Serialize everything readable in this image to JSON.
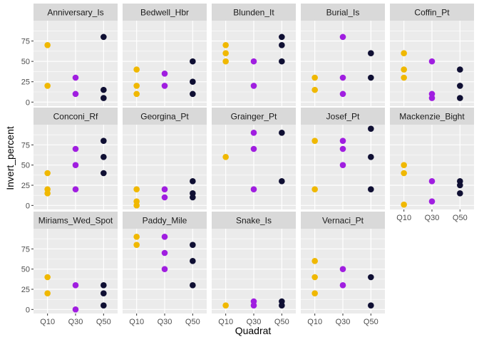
{
  "chart_data": {
    "type": "scatter",
    "xlabel": "Quadrat",
    "ylabel": "Invert_percent",
    "categories": [
      "Q10",
      "Q30",
      "Q50"
    ],
    "y_ticks": [
      0,
      25,
      50,
      75
    ],
    "ylim": [
      -5,
      100
    ],
    "grid": true,
    "legend": "none",
    "colors": {
      "Q10": "#f0b800",
      "Q30": "#a01ee0",
      "Q50": "#0f0f33"
    },
    "panel_bg": "#ebebeb",
    "strip_bg": "#d9d9d9",
    "panels": [
      {
        "name": "Anniversary_Is",
        "points": [
          [
            "Q10",
            70
          ],
          [
            "Q10",
            20
          ],
          [
            "Q30",
            30
          ],
          [
            "Q30",
            10
          ],
          [
            "Q50",
            80
          ],
          [
            "Q50",
            15
          ],
          [
            "Q50",
            5
          ]
        ]
      },
      {
        "name": "Bedwell_Hbr",
        "points": [
          [
            "Q10",
            40
          ],
          [
            "Q10",
            20
          ],
          [
            "Q10",
            10
          ],
          [
            "Q30",
            35
          ],
          [
            "Q30",
            20
          ],
          [
            "Q50",
            50
          ],
          [
            "Q50",
            25
          ],
          [
            "Q50",
            10
          ]
        ]
      },
      {
        "name": "Blunden_It",
        "points": [
          [
            "Q10",
            70
          ],
          [
            "Q10",
            60
          ],
          [
            "Q10",
            50
          ],
          [
            "Q30",
            50
          ],
          [
            "Q30",
            20
          ],
          [
            "Q50",
            80
          ],
          [
            "Q50",
            70
          ],
          [
            "Q50",
            50
          ]
        ]
      },
      {
        "name": "Burial_Is",
        "points": [
          [
            "Q10",
            30
          ],
          [
            "Q10",
            15
          ],
          [
            "Q30",
            80
          ],
          [
            "Q30",
            30
          ],
          [
            "Q30",
            10
          ],
          [
            "Q50",
            60
          ],
          [
            "Q50",
            30
          ]
        ]
      },
      {
        "name": "Coffin_Pt",
        "points": [
          [
            "Q10",
            60
          ],
          [
            "Q10",
            40
          ],
          [
            "Q10",
            30
          ],
          [
            "Q30",
            50
          ],
          [
            "Q30",
            10
          ],
          [
            "Q30",
            5
          ],
          [
            "Q50",
            40
          ],
          [
            "Q50",
            20
          ],
          [
            "Q50",
            5
          ]
        ]
      },
      {
        "name": "Conconi_Rf",
        "points": [
          [
            "Q10",
            40
          ],
          [
            "Q10",
            20
          ],
          [
            "Q10",
            15
          ],
          [
            "Q30",
            70
          ],
          [
            "Q30",
            50
          ],
          [
            "Q30",
            20
          ],
          [
            "Q50",
            80
          ],
          [
            "Q50",
            60
          ],
          [
            "Q50",
            40
          ]
        ]
      },
      {
        "name": "Georgina_Pt",
        "points": [
          [
            "Q10",
            20
          ],
          [
            "Q10",
            5
          ],
          [
            "Q10",
            0
          ],
          [
            "Q30",
            20
          ],
          [
            "Q30",
            10
          ],
          [
            "Q50",
            30
          ],
          [
            "Q50",
            15
          ],
          [
            "Q50",
            10
          ]
        ]
      },
      {
        "name": "Grainger_Pt",
        "points": [
          [
            "Q10",
            60
          ],
          [
            "Q30",
            90
          ],
          [
            "Q30",
            70
          ],
          [
            "Q30",
            20
          ],
          [
            "Q50",
            90
          ],
          [
            "Q50",
            30
          ]
        ]
      },
      {
        "name": "Josef_Pt",
        "points": [
          [
            "Q10",
            80
          ],
          [
            "Q10",
            20
          ],
          [
            "Q30",
            80
          ],
          [
            "Q30",
            70
          ],
          [
            "Q30",
            50
          ],
          [
            "Q50",
            95
          ],
          [
            "Q50",
            60
          ],
          [
            "Q50",
            20
          ]
        ]
      },
      {
        "name": "Mackenzie_Bight",
        "points": [
          [
            "Q10",
            50
          ],
          [
            "Q10",
            40
          ],
          [
            "Q10",
            1
          ],
          [
            "Q30",
            30
          ],
          [
            "Q30",
            5
          ],
          [
            "Q50",
            30
          ],
          [
            "Q50",
            25
          ],
          [
            "Q50",
            15
          ]
        ]
      },
      {
        "name": "Miriams_Wed_Spot",
        "points": [
          [
            "Q10",
            40
          ],
          [
            "Q10",
            20
          ],
          [
            "Q30",
            30
          ],
          [
            "Q30",
            0
          ],
          [
            "Q50",
            30
          ],
          [
            "Q50",
            20
          ],
          [
            "Q50",
            5
          ]
        ]
      },
      {
        "name": "Paddy_Mile",
        "points": [
          [
            "Q10",
            90
          ],
          [
            "Q10",
            80
          ],
          [
            "Q30",
            90
          ],
          [
            "Q30",
            70
          ],
          [
            "Q30",
            50
          ],
          [
            "Q50",
            80
          ],
          [
            "Q50",
            60
          ],
          [
            "Q50",
            30
          ]
        ]
      },
      {
        "name": "Snake_Is",
        "points": [
          [
            "Q10",
            5
          ],
          [
            "Q30",
            10
          ],
          [
            "Q30",
            5
          ],
          [
            "Q50",
            10
          ],
          [
            "Q50",
            5
          ]
        ]
      },
      {
        "name": "Vernaci_Pt",
        "points": [
          [
            "Q10",
            60
          ],
          [
            "Q10",
            40
          ],
          [
            "Q10",
            20
          ],
          [
            "Q30",
            50
          ],
          [
            "Q30",
            30
          ],
          [
            "Q50",
            40
          ],
          [
            "Q50",
            5
          ]
        ]
      }
    ]
  }
}
